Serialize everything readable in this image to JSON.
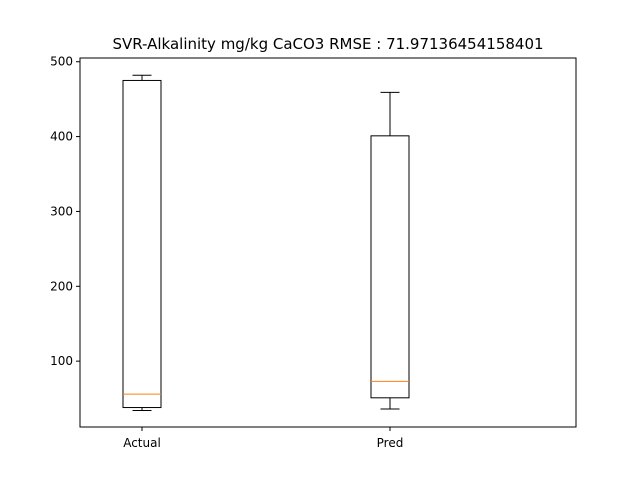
{
  "chart_data": {
    "type": "boxplot",
    "title": "SVR-Alkalinity mg/kg CaCO3 RMSE : 71.97136454158401",
    "xlabel": "",
    "ylabel": "",
    "ylim": [
      12,
      505
    ],
    "yticks": [
      100,
      200,
      300,
      400,
      500
    ],
    "grid": false,
    "categories": [
      "Actual",
      "Pred"
    ],
    "boxes": [
      {
        "label": "Actual",
        "whisker_low": 34,
        "q1": 38,
        "median": 56,
        "q3": 475,
        "whisker_high": 482
      },
      {
        "label": "Pred",
        "whisker_low": 36,
        "q1": 51,
        "median": 73,
        "q3": 401,
        "whisker_high": 459
      }
    ],
    "colors": {
      "box": "#000000",
      "median": "#ff7f0e",
      "background": "#ffffff"
    }
  }
}
